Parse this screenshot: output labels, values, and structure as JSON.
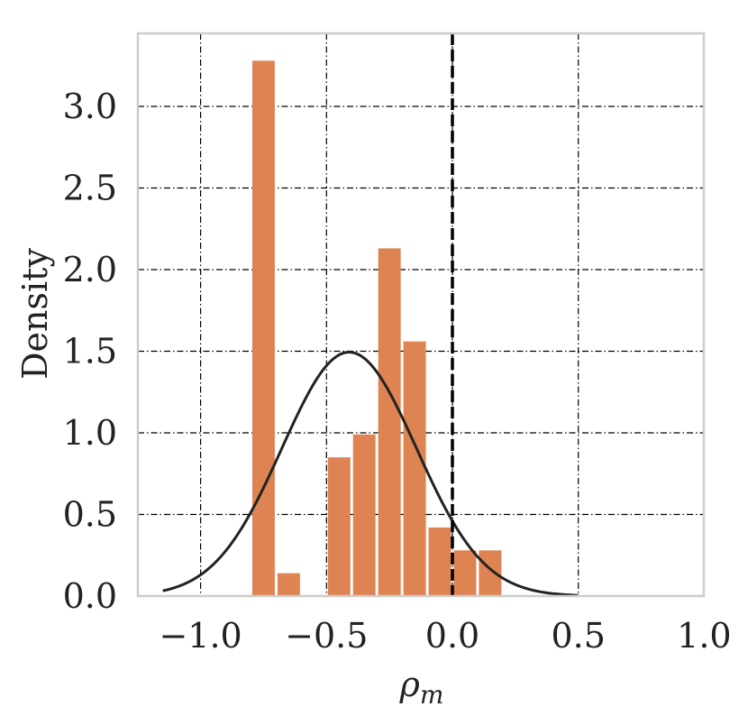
{
  "chart_data": {
    "type": "bar",
    "xlabel": "ρ",
    "xlabel_subscript": "m",
    "ylabel": "Density",
    "xlim": [
      -1.25,
      1.0
    ],
    "ylim": [
      0.0,
      3.45
    ],
    "x_ticks": [
      -1.0,
      -0.5,
      0.0,
      0.5,
      1.0
    ],
    "x_tick_labels": [
      "−1.0",
      "−0.5",
      "0.0",
      "0.5",
      "1.0"
    ],
    "y_ticks": [
      0.0,
      0.5,
      1.0,
      1.5,
      2.0,
      2.5,
      3.0
    ],
    "y_tick_labels": [
      "0.0",
      "0.5",
      "1.0",
      "1.5",
      "2.0",
      "2.5",
      "3.0"
    ],
    "grid": true,
    "bar_color": "#dd8452",
    "bins": [
      {
        "x0": -0.8,
        "x1": -0.7,
        "density": 3.28
      },
      {
        "x0": -0.7,
        "x1": -0.6,
        "density": 0.14
      },
      {
        "x0": -0.6,
        "x1": -0.5,
        "density": 0.0
      },
      {
        "x0": -0.5,
        "x1": -0.4,
        "density": 0.85
      },
      {
        "x0": -0.4,
        "x1": -0.3,
        "density": 0.99
      },
      {
        "x0": -0.3,
        "x1": -0.2,
        "density": 2.13
      },
      {
        "x0": -0.2,
        "x1": -0.1,
        "density": 1.56
      },
      {
        "x0": -0.1,
        "x1": 0.0,
        "density": 0.42
      },
      {
        "x0": 0.0,
        "x1": 0.1,
        "density": 0.28
      },
      {
        "x0": 0.1,
        "x1": 0.2,
        "density": 0.28
      }
    ],
    "normal_curve": {
      "mean": -0.41,
      "std": 0.267,
      "x_range": [
        -1.15,
        0.5
      ],
      "color": "#222222"
    },
    "reference_line": {
      "x": 0.0,
      "style": "dashed",
      "color": "#000000"
    }
  }
}
